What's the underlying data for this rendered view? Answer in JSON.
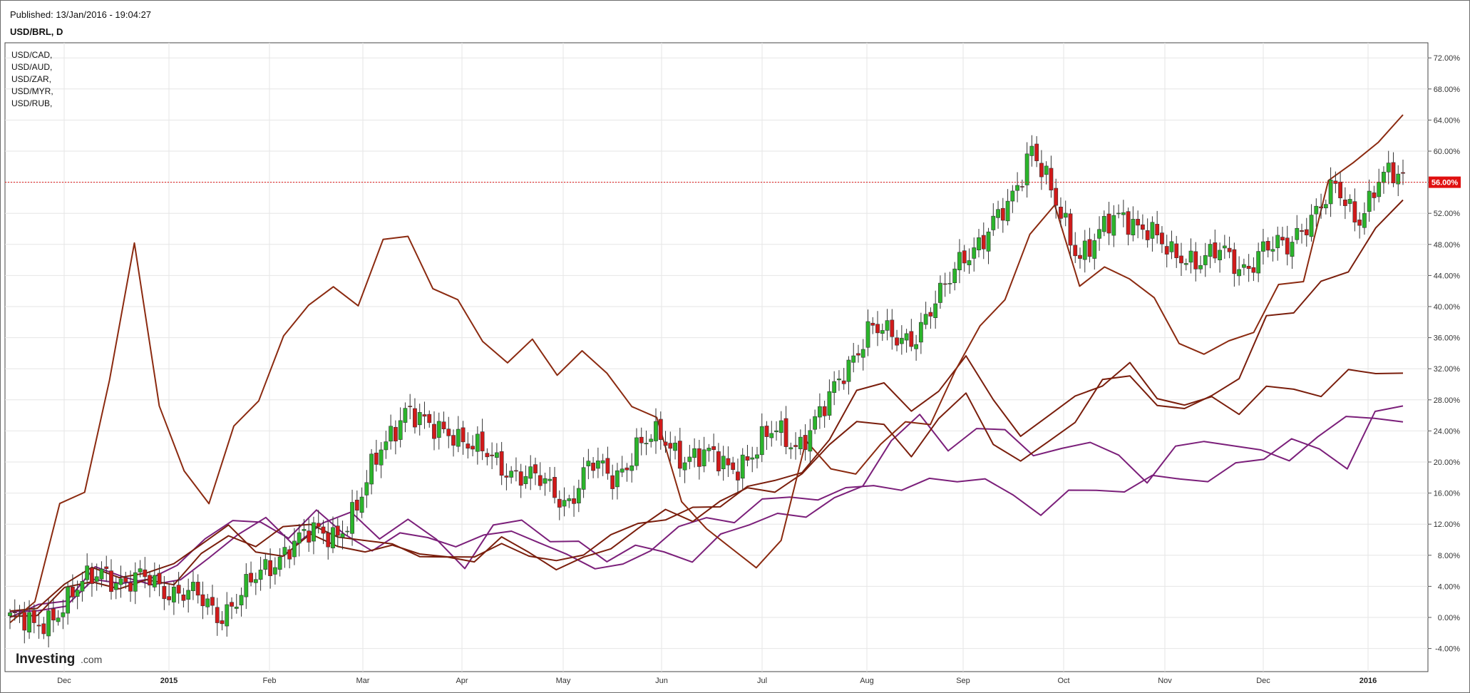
{
  "header": {
    "published": "Published: 13/Jan/2016 - 19:04:27",
    "symbol": "USD/BRL, D"
  },
  "watermark": {
    "brand": "Investing",
    "suffix": ".com"
  },
  "colors": {
    "up_candle": "#2bb52b",
    "down_candle": "#d11a1a",
    "wick": "#333333",
    "series_dark_red": "#7a1e0c",
    "series_purple": "#7b1f7a",
    "series_red": "#8b2a10",
    "price_line": "#e01010",
    "grid": "#e6e6e6"
  },
  "chart_data": {
    "type": "line",
    "main_series": "USD/BRL, D",
    "main_style": "candlestick",
    "x_ticks": [
      "Dec",
      "2015",
      "Feb",
      "Mar",
      "Apr",
      "May",
      "Jun",
      "Jul",
      "Aug",
      "Sep",
      "Oct",
      "Nov",
      "Dec",
      "2016"
    ],
    "y_ticks": [
      "72.00%",
      "68.00%",
      "64.00%",
      "60.00%",
      "56.00%",
      "52.00%",
      "48.00%",
      "44.00%",
      "40.00%",
      "36.00%",
      "32.00%",
      "28.00%",
      "24.00%",
      "20.00%",
      "16.00%",
      "12.00%",
      "8.00%",
      "4.00%",
      "0.00%",
      "-4.00%"
    ],
    "ylim": [
      -5,
      74
    ],
    "y_unit": "%",
    "current_value_label": "56.00%",
    "current_value": 56.0,
    "grid": true,
    "legend_position": "top-left",
    "legend": [
      "USD/CAD,",
      "USD/AUD,",
      "USD/ZAR,",
      "USD/MYR,",
      "USD/RUB,"
    ],
    "usd_brl_close_pct": [
      {
        "x": "Nov 20",
        "y": 0.0
      },
      {
        "x": "Dec 1",
        "y": -1.5
      },
      {
        "x": "Dec 5",
        "y": 1.0
      },
      {
        "x": "Dec 12",
        "y": 3.5
      },
      {
        "x": "Dec 19",
        "y": 6.5
      },
      {
        "x": "Dec 26",
        "y": 4.0
      },
      {
        "x": "Jan 2",
        "y": 5.0
      },
      {
        "x": "Jan 9",
        "y": 3.5
      },
      {
        "x": "Jan 16",
        "y": 2.5
      },
      {
        "x": "Jan 23",
        "y": 0.5
      },
      {
        "x": "Jan 30",
        "y": 3.0
      },
      {
        "x": "Feb 6",
        "y": 6.0
      },
      {
        "x": "Feb 13",
        "y": 9.5
      },
      {
        "x": "Feb 20",
        "y": 10.5
      },
      {
        "x": "Feb 27",
        "y": 11.0
      },
      {
        "x": "Mar 6",
        "y": 14.0
      },
      {
        "x": "Mar 13",
        "y": 22.0
      },
      {
        "x": "Mar 20",
        "y": 27.0
      },
      {
        "x": "Mar 27",
        "y": 24.0
      },
      {
        "x": "Apr 3",
        "y": 24.5
      },
      {
        "x": "Apr 10",
        "y": 21.5
      },
      {
        "x": "Apr 17",
        "y": 20.0
      },
      {
        "x": "Apr 24",
        "y": 18.5
      },
      {
        "x": "May 1",
        "y": 17.0
      },
      {
        "x": "May 8",
        "y": 15.0
      },
      {
        "x": "May 15",
        "y": 19.5
      },
      {
        "x": "May 22",
        "y": 18.0
      },
      {
        "x": "May 29",
        "y": 22.0
      },
      {
        "x": "Jun 5",
        "y": 23.0
      },
      {
        "x": "Jun 12",
        "y": 21.0
      },
      {
        "x": "Jun 19",
        "y": 20.5
      },
      {
        "x": "Jun 26",
        "y": 19.5
      },
      {
        "x": "Jul 3",
        "y": 21.0
      },
      {
        "x": "Jul 10",
        "y": 24.0
      },
      {
        "x": "Jul 17",
        "y": 22.5
      },
      {
        "x": "Jul 24",
        "y": 26.0
      },
      {
        "x": "Jul 31",
        "y": 32.5
      },
      {
        "x": "Aug 7",
        "y": 37.0
      },
      {
        "x": "Aug 14",
        "y": 36.0
      },
      {
        "x": "Aug 21",
        "y": 36.5
      },
      {
        "x": "Aug 28",
        "y": 40.5
      },
      {
        "x": "Sep 4",
        "y": 47.0
      },
      {
        "x": "Sep 11",
        "y": 48.5
      },
      {
        "x": "Sep 18",
        "y": 53.0
      },
      {
        "x": "Sep 25",
        "y": 61.0
      },
      {
        "x": "Oct 2",
        "y": 53.0
      },
      {
        "x": "Oct 9",
        "y": 47.0
      },
      {
        "x": "Oct 16",
        "y": 49.5
      },
      {
        "x": "Oct 23",
        "y": 51.5
      },
      {
        "x": "Oct 30",
        "y": 50.5
      },
      {
        "x": "Nov 6",
        "y": 46.0
      },
      {
        "x": "Nov 13",
        "y": 46.5
      },
      {
        "x": "Nov 20",
        "y": 47.0
      },
      {
        "x": "Nov 27",
        "y": 44.5
      },
      {
        "x": "Dec 4",
        "y": 48.0
      },
      {
        "x": "Dec 11",
        "y": 47.0
      },
      {
        "x": "Dec 18",
        "y": 52.0
      },
      {
        "x": "Dec 25",
        "y": 55.0
      },
      {
        "x": "Jan 1",
        "y": 51.0
      },
      {
        "x": "Jan 8",
        "y": 57.0
      },
      {
        "x": "Jan 13",
        "y": 56.0
      }
    ],
    "overlays": [
      {
        "label_index": 0,
        "color": "#7b1f7a",
        "points": [
          0,
          1,
          3,
          6,
          5,
          5,
          4,
          8,
          11,
          12,
          10,
          12,
          13,
          11,
          12,
          10,
          7,
          11,
          13,
          10,
          9,
          8,
          9,
          8,
          8,
          10,
          12,
          14,
          12,
          16,
          17,
          22,
          27,
          21,
          24,
          25,
          20,
          22,
          23,
          20,
          18,
          22,
          22,
          23,
          21,
          20,
          24,
          25,
          26,
          25.5
        ]
      },
      {
        "label_index": 1,
        "color": "#7b1f7a",
        "points": [
          0,
          1,
          2,
          4,
          5,
          5,
          6,
          11,
          12,
          12,
          11,
          13,
          11,
          9,
          10,
          11,
          9,
          10,
          12,
          9,
          8,
          7,
          6,
          9,
          12,
          12,
          13,
          15,
          15,
          16,
          16,
          17,
          17,
          17,
          18,
          18,
          15,
          14,
          16,
          16,
          17,
          17.5,
          18,
          18,
          19,
          21,
          23,
          21,
          20,
          26,
          27
        ]
      },
      {
        "label_index": 2,
        "color": "#7a1e0c",
        "points": [
          0,
          2,
          4,
          6,
          6,
          5,
          7,
          10,
          11,
          9,
          8,
          10,
          10,
          8,
          9,
          9,
          7,
          8,
          10,
          7,
          8,
          8,
          10,
          13,
          12,
          14,
          15,
          16,
          18,
          19,
          22,
          30,
          30,
          26,
          30,
          33,
          28,
          24,
          25,
          29,
          30,
          32,
          29,
          27,
          28,
          27,
          29,
          29.5,
          29,
          31,
          32,
          31.5
        ]
      },
      {
        "label_index": 3,
        "color": "#7a1e0c",
        "points": [
          0,
          1,
          3,
          5,
          4,
          4,
          5,
          8,
          10,
          10,
          11,
          12,
          11,
          9,
          10,
          8,
          7,
          8,
          10,
          8,
          7,
          7,
          9,
          12,
          13,
          13,
          15,
          16,
          17,
          18,
          22,
          26,
          24,
          21,
          26,
          28,
          23,
          20,
          22,
          26,
          30,
          31,
          28,
          26,
          29,
          31,
          38,
          40,
          43,
          44,
          51,
          53
        ]
      },
      {
        "label_index": 4,
        "color": "#8b2a10",
        "points": [
          0,
          2,
          14,
          17,
          30,
          48,
          28,
          18,
          15,
          25,
          27,
          37,
          40,
          42,
          41,
          48,
          49,
          43,
          40,
          36,
          33,
          35,
          32,
          34,
          31,
          28,
          25,
          15,
          12,
          8,
          7,
          10,
          22,
          20,
          18,
          22,
          26,
          24,
          32,
          38,
          40,
          50,
          53,
          42,
          46,
          43,
          41,
          36,
          33,
          36,
          37,
          42,
          44,
          56,
          58,
          62,
          64
        ]
      }
    ]
  }
}
